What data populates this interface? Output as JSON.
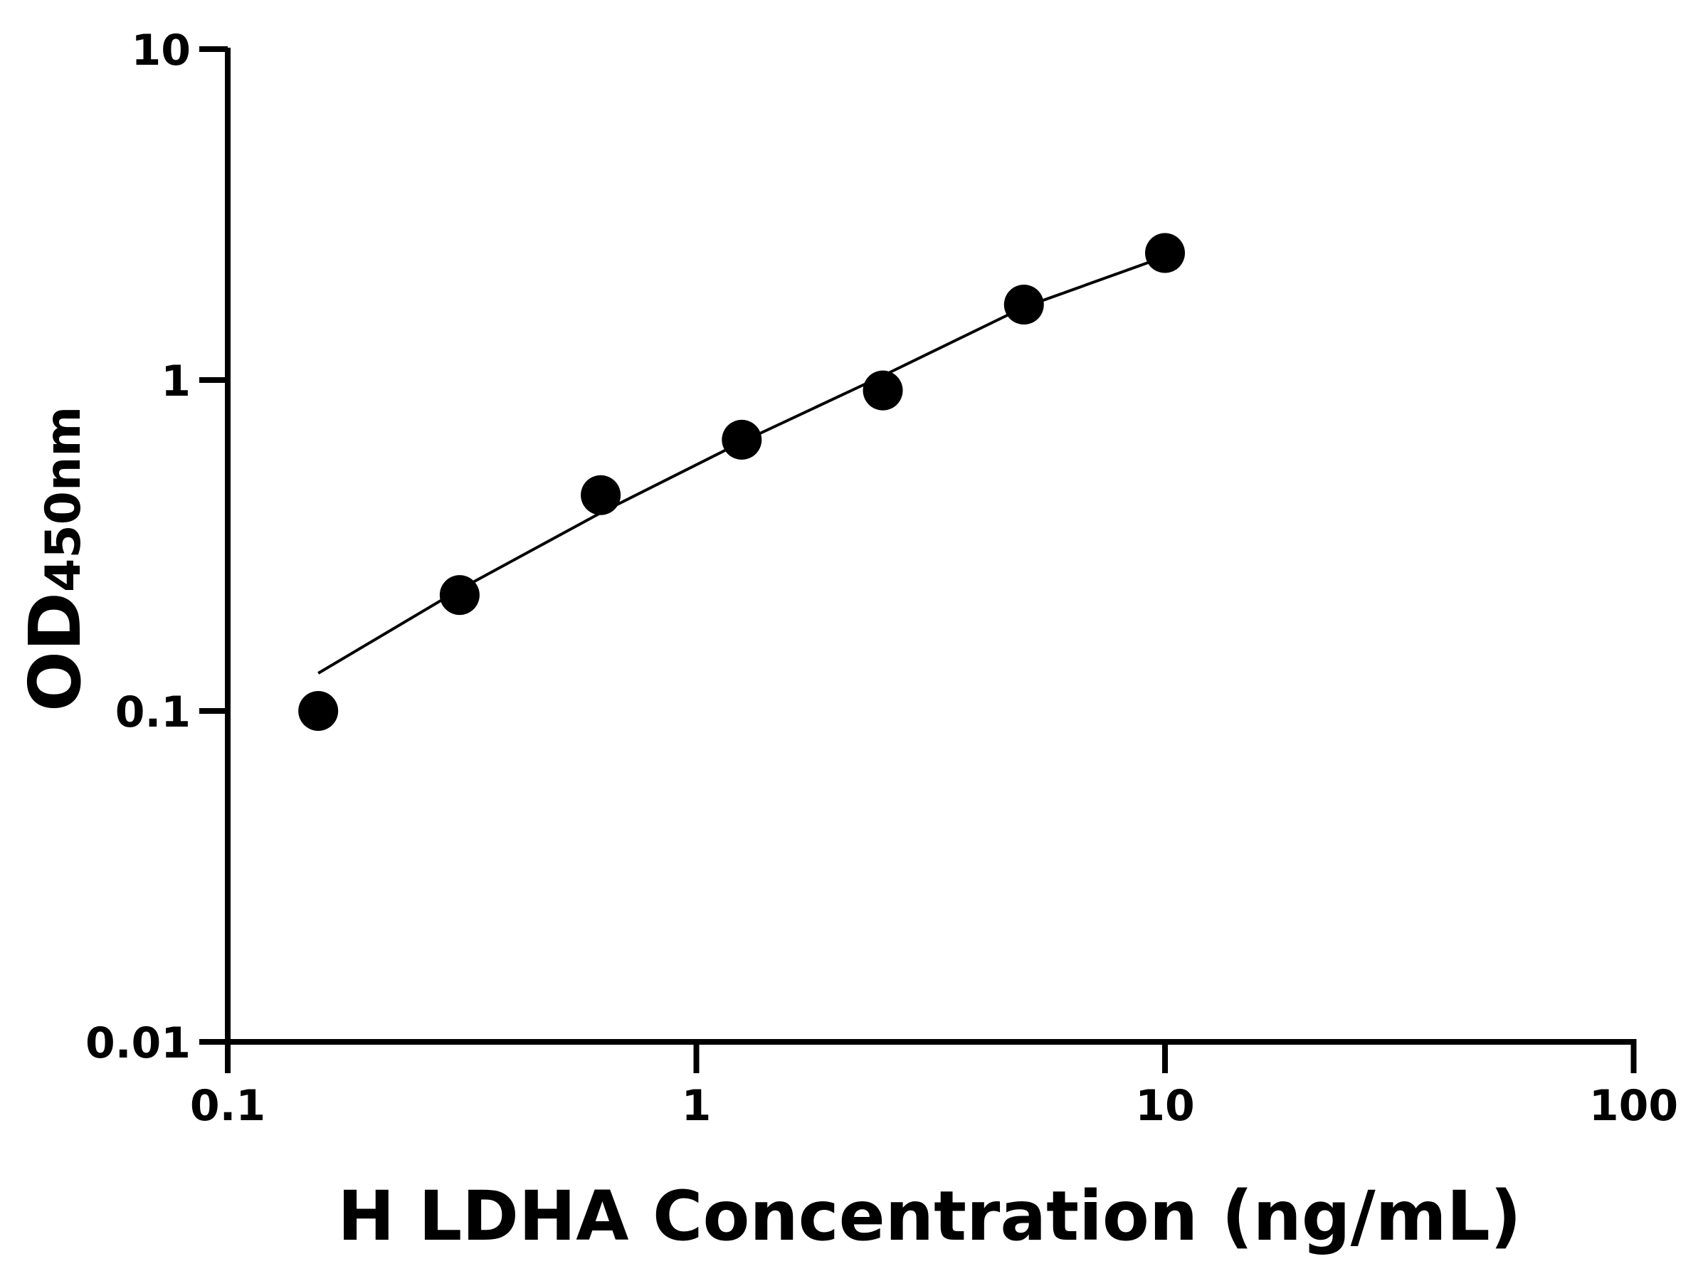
{
  "chart_data": {
    "type": "scatter",
    "title": "",
    "xlabel": "H LDHA Concentration (ng/mL)",
    "ylabel": {
      "main": "OD",
      "subscript": "450nm"
    },
    "x_scale": "log",
    "y_scale": "log",
    "xlim": [
      0.1,
      100
    ],
    "ylim": [
      0.01,
      10
    ],
    "x_ticks": [
      "0.1",
      "1",
      "10",
      "100"
    ],
    "y_ticks": [
      "0.01",
      "0.1",
      "1",
      "10"
    ],
    "grid": false,
    "series": [
      {
        "type": "scatter",
        "x": [
          0.156,
          0.3125,
          0.625,
          1.25,
          2.5,
          5,
          10
        ],
        "y": [
          0.1,
          0.224,
          0.449,
          0.66,
          0.93,
          1.69,
          2.42
        ]
      },
      {
        "type": "line",
        "x": [
          0.156,
          0.3125,
          0.625,
          1.25,
          2.5,
          5,
          9.5
        ],
        "y": [
          0.13,
          0.233,
          0.397,
          0.65,
          1.03,
          1.66,
          2.3
        ]
      }
    ],
    "colors": {
      "marks": "#000000",
      "axes": "#000000"
    }
  }
}
